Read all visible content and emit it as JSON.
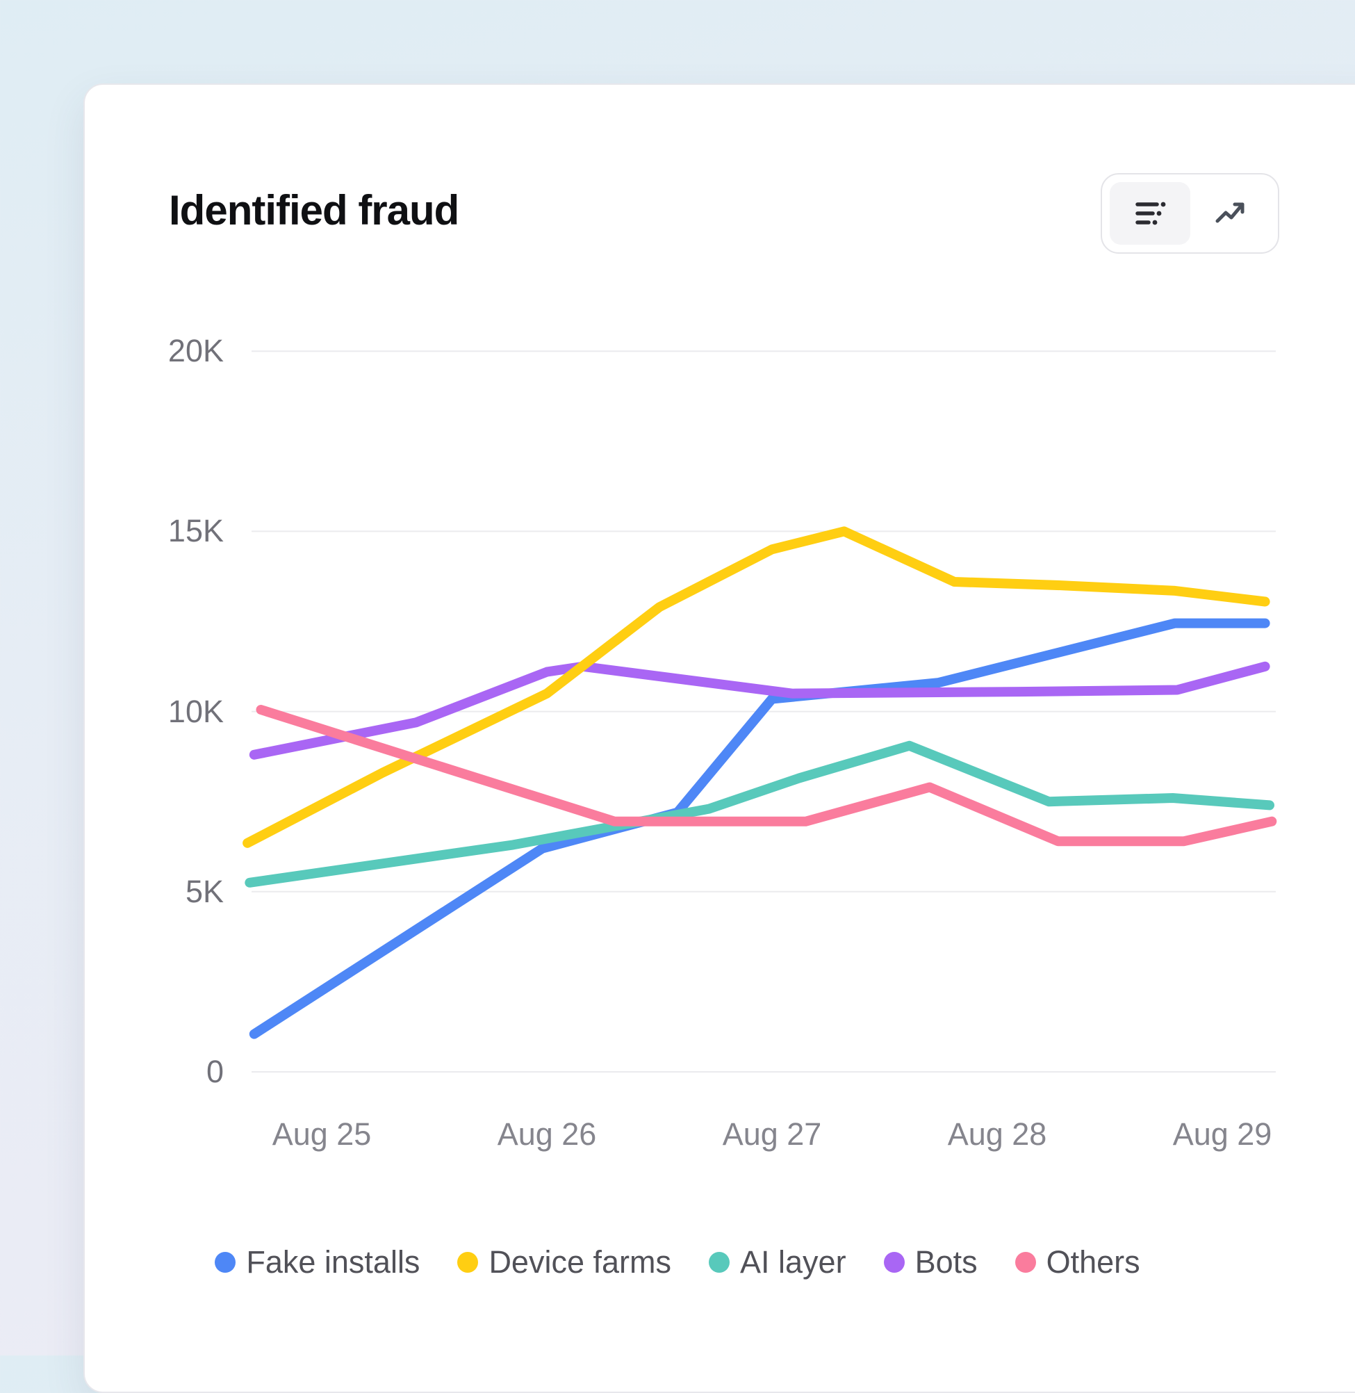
{
  "header": {
    "title": "Identified fraud"
  },
  "view_toggle": {
    "options": [
      {
        "id": "summary",
        "icon": "list-details-icon",
        "active": true
      },
      {
        "id": "trend",
        "icon": "trend-up-icon",
        "active": false
      }
    ]
  },
  "chart_data": {
    "type": "line",
    "title": "Identified fraud",
    "x_tick_labels": [
      "Aug 25",
      "Aug 26",
      "Aug 27",
      "Aug 28",
      "Aug 29"
    ],
    "y_tick_labels": [
      "20K",
      "15K",
      "10K",
      "5K",
      "0"
    ],
    "y_ticks_k": [
      20,
      15,
      10,
      5,
      0
    ],
    "ylim_k": [
      0,
      20
    ],
    "x_domain_days": [
      -0.35,
      4.25
    ],
    "grid": "horizontal",
    "legend_position": "bottom",
    "values_unit": "K",
    "series": [
      {
        "name": "Fake installs",
        "color": "#4E87F6",
        "points_day_k": [
          [
            -0.3,
            1.05
          ],
          [
            0.98,
            6.2
          ],
          [
            1.58,
            7.2
          ],
          [
            2.0,
            10.35
          ],
          [
            2.74,
            10.8
          ],
          [
            3.79,
            12.45
          ],
          [
            4.19,
            12.45
          ]
        ]
      },
      {
        "name": "Device farms",
        "color": "#FFCE12",
        "points_day_k": [
          [
            -0.33,
            6.35
          ],
          [
            0.27,
            8.3
          ],
          [
            1.0,
            10.5
          ],
          [
            1.5,
            12.9
          ],
          [
            2.0,
            14.5
          ],
          [
            2.32,
            15.0
          ],
          [
            2.81,
            13.6
          ],
          [
            3.29,
            13.5
          ],
          [
            3.79,
            13.35
          ],
          [
            4.19,
            13.05
          ]
        ]
      },
      {
        "name": "AI layer",
        "color": "#58C9BB",
        "points_day_k": [
          [
            -0.32,
            5.25
          ],
          [
            0.85,
            6.3
          ],
          [
            1.72,
            7.3
          ],
          [
            2.12,
            8.15
          ],
          [
            2.61,
            9.05
          ],
          [
            3.23,
            7.5
          ],
          [
            3.78,
            7.6
          ],
          [
            4.21,
            7.4
          ]
        ]
      },
      {
        "name": "Bots",
        "color": "#A966F4",
        "points_day_k": [
          [
            -0.3,
            8.8
          ],
          [
            0.42,
            9.7
          ],
          [
            1.0,
            11.1
          ],
          [
            1.16,
            11.25
          ],
          [
            2.09,
            10.5
          ],
          [
            3.1,
            10.55
          ],
          [
            3.8,
            10.6
          ],
          [
            4.19,
            11.25
          ]
        ]
      },
      {
        "name": "Others",
        "color": "#FA7C9D",
        "points_day_k": [
          [
            -0.27,
            10.05
          ],
          [
            1.3,
            6.95
          ],
          [
            2.15,
            6.95
          ],
          [
            2.7,
            7.9
          ],
          [
            3.27,
            6.4
          ],
          [
            3.83,
            6.4
          ],
          [
            4.22,
            6.95
          ]
        ]
      }
    ],
    "draw_order": [
      "Fake installs",
      "Bots",
      "Device farms",
      "AI layer",
      "Others"
    ]
  }
}
